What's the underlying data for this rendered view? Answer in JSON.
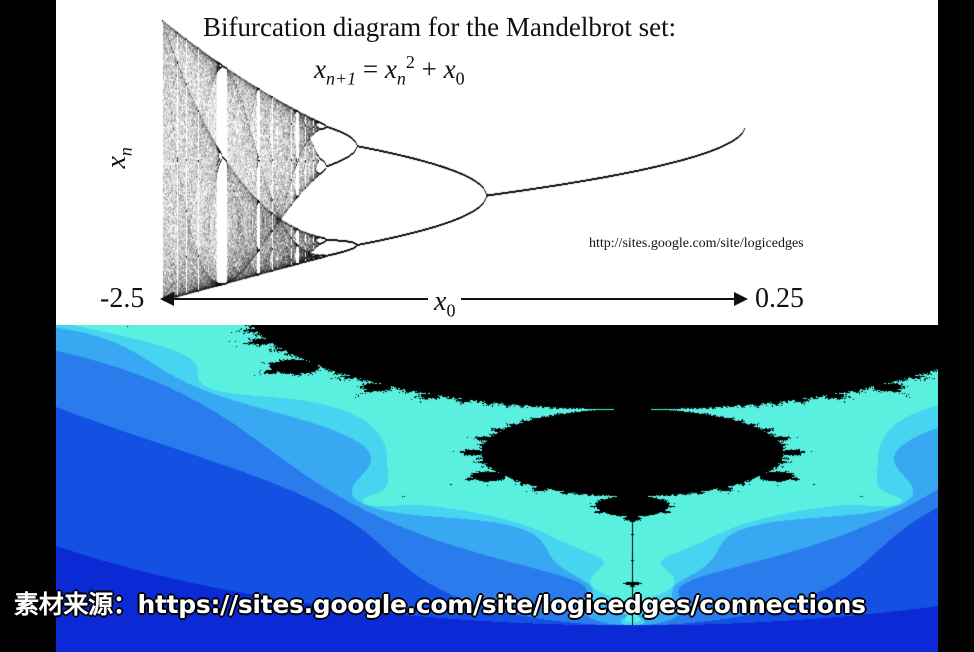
{
  "diagram": {
    "title": "Bifurcation diagram for the Mandelbrot set:",
    "formula": {
      "lhs_var": "x",
      "lhs_sub": "n+1",
      "eq": " = ",
      "rhs_var": "x",
      "rhs_sub": "n",
      "rhs_sup": "2",
      "plus": " + ",
      "c_var": "x",
      "c_sub": "0"
    },
    "y_axis_label": {
      "var": "x",
      "sub": "n"
    },
    "x_axis_label": {
      "var": "x",
      "sub": "0"
    },
    "x_min_label": "-2.5",
    "x_max_label": "0.25",
    "source_url": "http://sites.google.com/site/logicedges"
  },
  "subtitle": "素材来源：https://sites.google.com/site/logicedges/connections",
  "colors": {
    "background": "#000000",
    "diagram_bg": "#ffffff",
    "ink": "#111111",
    "mandelbrot_palette": [
      "#0b2ad6",
      "#1450e2",
      "#2a7cec",
      "#38a8f2",
      "#46d4f0",
      "#5af0e0"
    ],
    "mandelbrot_inside": "#000000"
  }
}
